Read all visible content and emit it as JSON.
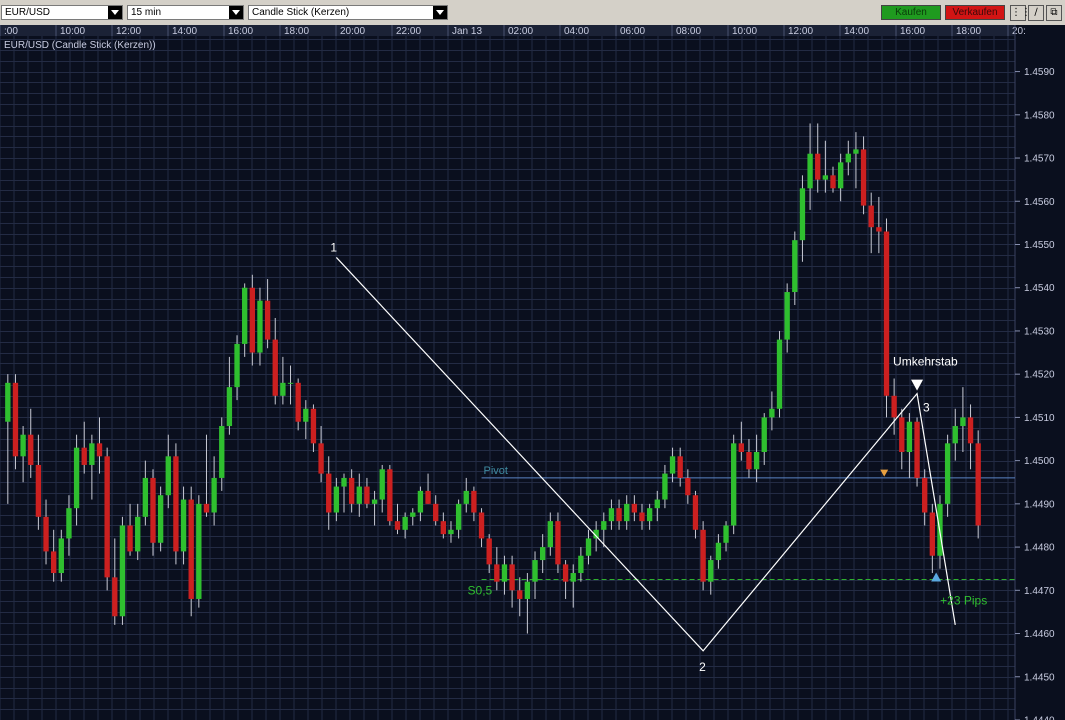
{
  "toolbar": {
    "symbol": "EUR/USD",
    "interval": "15 min",
    "chart_style": "Candle Stick (Kerzen)",
    "buy_label": "Kaufen",
    "sell_label": "Verkaufen",
    "buy_color": "#1f9a1f",
    "sell_color": "#d21414",
    "icons": [
      "candle-style-icon",
      "draw-line-icon",
      "detach-window-icon"
    ]
  },
  "colors": {
    "background": "#0a0f1e",
    "grid": "#232b44",
    "up_candle": "#2fbf2f",
    "down_candle": "#cc2020",
    "pivot_line": "#5a84c4",
    "support_line": "#2faf2f",
    "pattern_line": "#ffffff"
  },
  "chart_data": {
    "type": "candlestick",
    "title": "EUR/USD (Candle Stick (Kerzen))",
    "time_labels": [
      ":00",
      "10:00",
      "12:00",
      "14:00",
      "16:00",
      "18:00",
      "20:00",
      "22:00",
      "Jan 13",
      "02:00",
      "04:00",
      "06:00",
      "08:00",
      "10:00",
      "12:00",
      "14:00",
      "16:00",
      "18:00",
      "20:"
    ],
    "y_ticks": [
      1.459,
      1.458,
      1.457,
      1.456,
      1.455,
      1.454,
      1.453,
      1.452,
      1.451,
      1.45,
      1.449,
      1.448,
      1.447,
      1.446,
      1.445,
      1.444
    ],
    "ylim": [
      1.444,
      1.4598
    ],
    "grid": true,
    "candles": [
      [
        1.4509,
        1.452,
        1.449,
        1.4518
      ],
      [
        1.4518,
        1.452,
        1.4498,
        1.4501
      ],
      [
        1.4501,
        1.4508,
        1.4495,
        1.4506
      ],
      [
        1.4506,
        1.4512,
        1.4496,
        1.4499
      ],
      [
        1.4499,
        1.4506,
        1.4484,
        1.4487
      ],
      [
        1.4487,
        1.4491,
        1.4476,
        1.4479
      ],
      [
        1.4479,
        1.4484,
        1.4472,
        1.4474
      ],
      [
        1.4474,
        1.4484,
        1.4472,
        1.4482
      ],
      [
        1.4482,
        1.4492,
        1.4478,
        1.4489
      ],
      [
        1.4489,
        1.4506,
        1.4485,
        1.4503
      ],
      [
        1.4503,
        1.4509,
        1.4497,
        1.4499
      ],
      [
        1.4499,
        1.4506,
        1.4491,
        1.4504
      ],
      [
        1.4504,
        1.451,
        1.4497,
        1.4501
      ],
      [
        1.4501,
        1.4503,
        1.447,
        1.4473
      ],
      [
        1.4473,
        1.4482,
        1.4462,
        1.4464
      ],
      [
        1.4464,
        1.4487,
        1.4462,
        1.4485
      ],
      [
        1.4485,
        1.449,
        1.4478,
        1.4479
      ],
      [
        1.4479,
        1.449,
        1.4477,
        1.4487
      ],
      [
        1.4487,
        1.45,
        1.4485,
        1.4496
      ],
      [
        1.4496,
        1.4498,
        1.4478,
        1.4481
      ],
      [
        1.4481,
        1.4494,
        1.4479,
        1.4492
      ],
      [
        1.4492,
        1.4506,
        1.4489,
        1.4501
      ],
      [
        1.4501,
        1.4504,
        1.4476,
        1.4479
      ],
      [
        1.4479,
        1.4494,
        1.4476,
        1.4491
      ],
      [
        1.4491,
        1.4494,
        1.4464,
        1.4468
      ],
      [
        1.4468,
        1.4492,
        1.4466,
        1.449
      ],
      [
        1.449,
        1.4506,
        1.4487,
        1.4488
      ],
      [
        1.4488,
        1.4501,
        1.4485,
        1.4496
      ],
      [
        1.4496,
        1.451,
        1.4493,
        1.4508
      ],
      [
        1.4508,
        1.4524,
        1.4506,
        1.4517
      ],
      [
        1.4517,
        1.4529,
        1.4514,
        1.4527
      ],
      [
        1.4527,
        1.4541,
        1.4524,
        1.454
      ],
      [
        1.454,
        1.4543,
        1.4522,
        1.4525
      ],
      [
        1.4525,
        1.454,
        1.4522,
        1.4537
      ],
      [
        1.4537,
        1.4542,
        1.4526,
        1.4528
      ],
      [
        1.4528,
        1.4533,
        1.4513,
        1.4515
      ],
      [
        1.4515,
        1.4524,
        1.4513,
        1.4518
      ],
      [
        1.4518,
        1.4522,
        1.4513,
        1.4518
      ],
      [
        1.4518,
        1.4519,
        1.4507,
        1.4509
      ],
      [
        1.4509,
        1.4514,
        1.4505,
        1.4512
      ],
      [
        1.4512,
        1.4513,
        1.4502,
        1.4504
      ],
      [
        1.4504,
        1.4508,
        1.4495,
        1.4497
      ],
      [
        1.4497,
        1.4501,
        1.4484,
        1.4488
      ],
      [
        1.4488,
        1.4496,
        1.4486,
        1.4494
      ],
      [
        1.4494,
        1.4497,
        1.4488,
        1.4496
      ],
      [
        1.4496,
        1.4498,
        1.4488,
        1.449
      ],
      [
        1.449,
        1.4497,
        1.4487,
        1.4494
      ],
      [
        1.4494,
        1.4496,
        1.4489,
        1.449
      ],
      [
        1.449,
        1.4493,
        1.4485,
        1.4491
      ],
      [
        1.4491,
        1.4499,
        1.4488,
        1.4498
      ],
      [
        1.4498,
        1.4499,
        1.4485,
        1.4486
      ],
      [
        1.4486,
        1.449,
        1.4483,
        1.4484
      ],
      [
        1.4484,
        1.4488,
        1.4482,
        1.4487
      ],
      [
        1.4487,
        1.4489,
        1.4485,
        1.4488
      ],
      [
        1.4488,
        1.4494,
        1.4486,
        1.4493
      ],
      [
        1.4493,
        1.4497,
        1.449,
        1.449
      ],
      [
        1.449,
        1.4492,
        1.4485,
        1.4486
      ],
      [
        1.4486,
        1.4488,
        1.4482,
        1.4483
      ],
      [
        1.4483,
        1.4486,
        1.4481,
        1.4484
      ],
      [
        1.4484,
        1.4491,
        1.4482,
        1.449
      ],
      [
        1.449,
        1.4496,
        1.4488,
        1.4493
      ],
      [
        1.4493,
        1.4494,
        1.4486,
        1.4488
      ],
      [
        1.4488,
        1.4489,
        1.448,
        1.4482
      ],
      [
        1.4482,
        1.4483,
        1.4474,
        1.4476
      ],
      [
        1.4476,
        1.448,
        1.447,
        1.4472
      ],
      [
        1.4472,
        1.4478,
        1.4469,
        1.4476
      ],
      [
        1.4476,
        1.4478,
        1.4466,
        1.447
      ],
      [
        1.447,
        1.4473,
        1.4464,
        1.4468
      ],
      [
        1.4468,
        1.4474,
        1.446,
        1.4472
      ],
      [
        1.4472,
        1.4479,
        1.4468,
        1.4477
      ],
      [
        1.4477,
        1.4483,
        1.4474,
        1.448
      ],
      [
        1.448,
        1.4488,
        1.4478,
        1.4486
      ],
      [
        1.4486,
        1.4488,
        1.4474,
        1.4476
      ],
      [
        1.4476,
        1.4477,
        1.4468,
        1.4472
      ],
      [
        1.4472,
        1.4476,
        1.4466,
        1.4474
      ],
      [
        1.4474,
        1.448,
        1.4472,
        1.4478
      ],
      [
        1.4478,
        1.4484,
        1.4476,
        1.4482
      ],
      [
        1.4482,
        1.4486,
        1.4479,
        1.4484
      ],
      [
        1.4484,
        1.4488,
        1.448,
        1.4486
      ],
      [
        1.4486,
        1.4491,
        1.4484,
        1.4489
      ],
      [
        1.4489,
        1.4491,
        1.4484,
        1.4486
      ],
      [
        1.4486,
        1.4492,
        1.4484,
        1.449
      ],
      [
        1.449,
        1.4492,
        1.4486,
        1.4488
      ],
      [
        1.4488,
        1.449,
        1.4484,
        1.4486
      ],
      [
        1.4486,
        1.449,
        1.4484,
        1.4489
      ],
      [
        1.4489,
        1.4493,
        1.4486,
        1.4491
      ],
      [
        1.4491,
        1.4499,
        1.4489,
        1.4497
      ],
      [
        1.4497,
        1.4503,
        1.4495,
        1.4501
      ],
      [
        1.4501,
        1.4503,
        1.4494,
        1.4496
      ],
      [
        1.4496,
        1.4498,
        1.449,
        1.4492
      ],
      [
        1.4492,
        1.4493,
        1.4482,
        1.4484
      ],
      [
        1.4484,
        1.4486,
        1.447,
        1.4472
      ],
      [
        1.4472,
        1.4478,
        1.4469,
        1.4477
      ],
      [
        1.4477,
        1.4483,
        1.4475,
        1.4481
      ],
      [
        1.4481,
        1.4486,
        1.4479,
        1.4485
      ],
      [
        1.4485,
        1.4506,
        1.4483,
        1.4504
      ],
      [
        1.4504,
        1.4509,
        1.45,
        1.4502
      ],
      [
        1.4502,
        1.4505,
        1.4496,
        1.4498
      ],
      [
        1.4498,
        1.4506,
        1.4495,
        1.4502
      ],
      [
        1.4502,
        1.4511,
        1.4499,
        1.451
      ],
      [
        1.451,
        1.4516,
        1.4507,
        1.4512
      ],
      [
        1.4512,
        1.453,
        1.451,
        1.4528
      ],
      [
        1.4528,
        1.4541,
        1.4525,
        1.4539
      ],
      [
        1.4539,
        1.4553,
        1.4536,
        1.4551
      ],
      [
        1.4551,
        1.4566,
        1.4546,
        1.4563
      ],
      [
        1.4563,
        1.4578,
        1.4558,
        1.4571
      ],
      [
        1.4571,
        1.4578,
        1.4562,
        1.4565
      ],
      [
        1.4565,
        1.4574,
        1.4562,
        1.4566
      ],
      [
        1.4566,
        1.4568,
        1.4562,
        1.4563
      ],
      [
        1.4563,
        1.4571,
        1.456,
        1.4569
      ],
      [
        1.4569,
        1.4574,
        1.4566,
        1.4571
      ],
      [
        1.4571,
        1.4576,
        1.4563,
        1.4572
      ],
      [
        1.4572,
        1.4575,
        1.4557,
        1.4559
      ],
      [
        1.4559,
        1.4562,
        1.4548,
        1.4554
      ],
      [
        1.4554,
        1.4561,
        1.4548,
        1.4553
      ],
      [
        1.4553,
        1.4556,
        1.451,
        1.4515
      ],
      [
        1.4515,
        1.4519,
        1.4506,
        1.451
      ],
      [
        1.451,
        1.4512,
        1.4498,
        1.4502
      ],
      [
        1.4502,
        1.4511,
        1.4496,
        1.4509
      ],
      [
        1.4509,
        1.451,
        1.4494,
        1.4496
      ],
      [
        1.4496,
        1.4498,
        1.4485,
        1.4488
      ],
      [
        1.4488,
        1.449,
        1.4474,
        1.4478
      ],
      [
        1.4478,
        1.4492,
        1.4475,
        1.449
      ],
      [
        1.449,
        1.4506,
        1.4487,
        1.4504
      ],
      [
        1.4504,
        1.4512,
        1.45,
        1.4508
      ],
      [
        1.4508,
        1.4517,
        1.4502,
        1.451
      ],
      [
        1.451,
        1.4513,
        1.4498,
        1.4504
      ],
      [
        1.4504,
        1.4507,
        1.4482,
        1.4485
      ]
    ],
    "pivot": {
      "label": "Pivot",
      "value": 1.4496
    },
    "support": {
      "label": "S0,5",
      "value": 1.44725
    },
    "pattern": {
      "point_labels": [
        "1",
        "2",
        "3"
      ],
      "points": [
        [
          43,
          1.4547
        ],
        [
          91,
          1.4456
        ],
        [
          119,
          1.45155
        ]
      ],
      "extension_end": [
        124,
        1.4462
      ],
      "reversal_label": "Umkehrstab",
      "profit_label": "+23 Pips"
    }
  }
}
